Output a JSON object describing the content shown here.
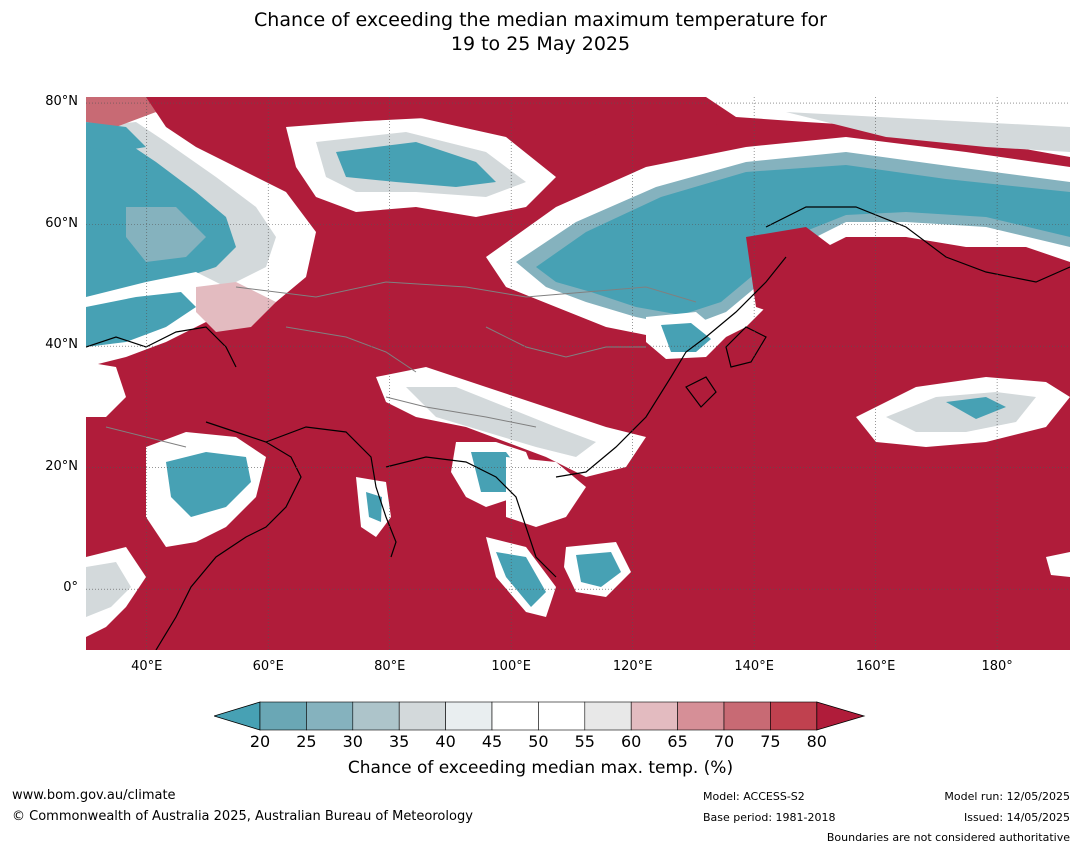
{
  "title": {
    "line1": "Chance of exceeding the median maximum temperature for",
    "line2": "19 to 25 May 2025"
  },
  "map": {
    "lat_labels": [
      "80°N",
      "60°N",
      "40°N",
      "20°N",
      "0°"
    ],
    "lon_labels": [
      "40°E",
      "60°E",
      "80°E",
      "100°E",
      "120°E",
      "140°E",
      "160°E",
      "180°"
    ],
    "extent": {
      "lon": [
        30,
        192
      ],
      "lat": [
        -10,
        81
      ]
    },
    "colors": {
      "deep_red": "#b01c3a",
      "red_75": "#c0414f",
      "red_70": "#c86a74",
      "red_65": "#d68f97",
      "pink_60": "#e3bbc0",
      "grey_55": "#e8e8e8",
      "white": "#ffffff",
      "pale_40": "#e9eef0",
      "grey_35": "#d3d9db",
      "blue_30": "#adc4ca",
      "blue_25": "#85b2be",
      "blue_20": "#6aa7b5",
      "teal": "#47a1b4"
    }
  },
  "colorbar": {
    "ticks": [
      "20",
      "25",
      "30",
      "35",
      "40",
      "45",
      "50",
      "55",
      "60",
      "65",
      "70",
      "75",
      "80"
    ],
    "label": "Chance of exceeding median max. temp. (%)"
  },
  "footer": {
    "website": "www.bom.gov.au/climate",
    "copyright": "© Commonwealth of Australia 2025, Australian Bureau of Meteorology",
    "model": "Model: ACCESS-S2",
    "base_period": "Base period: 1981-2018",
    "model_run": "Model run: 12/05/2025",
    "issued": "Issued: 14/05/2025",
    "disclaimer": "Boundaries are not considered authoritative"
  }
}
